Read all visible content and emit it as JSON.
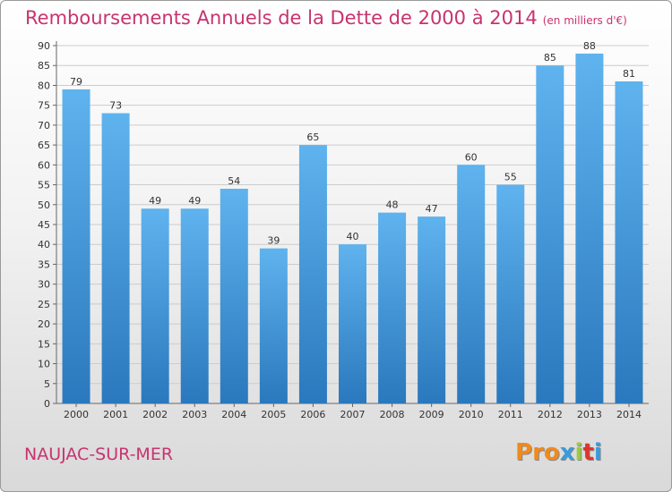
{
  "header": {
    "title": "Remboursements Annuels de la Dette de 2000 à 2014",
    "subtitle": "(en milliers d'€)"
  },
  "footer": {
    "commune": "NAUJAC-SUR-MER",
    "brand": "Proxiti"
  },
  "colors": {
    "title": "#c8336e",
    "bar_top": "#5fb3ee",
    "bar_bottom": "#2a78bd",
    "grid": "#cccccc",
    "logo_letters": [
      "#f08a1c",
      "#f08a1c",
      "#f08a1c",
      "#3a9bdc",
      "#9acb3c",
      "#e0342a",
      "#3a9bdc"
    ]
  },
  "chart_data": {
    "type": "bar",
    "title": "Remboursements Annuels de la Dette de 2000 à 2014",
    "subtitle": "(en milliers d'€)",
    "categories": [
      "2000",
      "2001",
      "2002",
      "2003",
      "2004",
      "2005",
      "2006",
      "2007",
      "2008",
      "2009",
      "2010",
      "2011",
      "2012",
      "2013",
      "2014"
    ],
    "values": [
      79,
      73,
      49,
      49,
      54,
      39,
      65,
      40,
      48,
      47,
      60,
      55,
      85,
      88,
      81
    ],
    "ylim": [
      0,
      90
    ],
    "yticks": [
      0,
      5,
      10,
      15,
      20,
      25,
      30,
      35,
      40,
      45,
      50,
      55,
      60,
      65,
      70,
      75,
      80,
      85,
      90
    ],
    "xlabel": "",
    "ylabel": "",
    "grid": true,
    "data_labels": true
  }
}
